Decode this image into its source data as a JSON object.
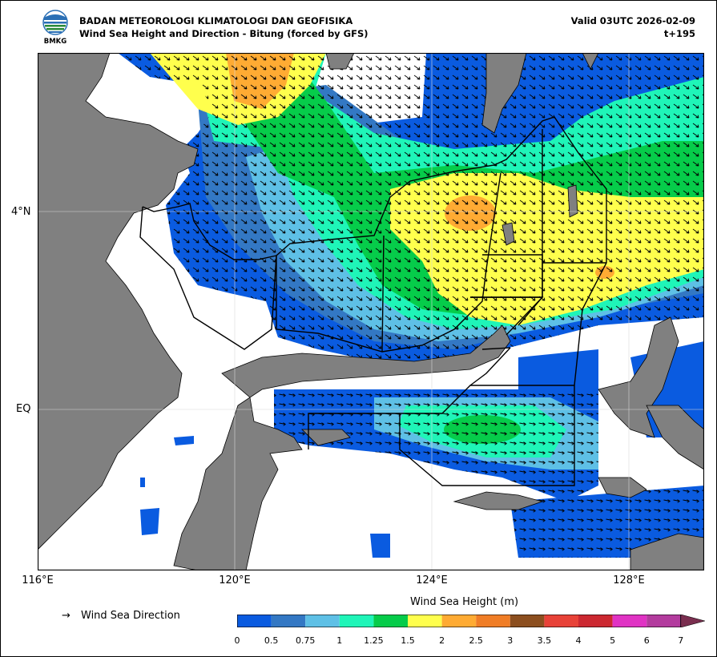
{
  "header": {
    "agency": "BADAN METEOROLOGI KLIMATOLOGI DAN GEOFISIKA",
    "product": "Wind Sea Height and Direction - Bitung (forced by GFS)",
    "valid": "Valid 03UTC 2026-02-09",
    "step": "t+195",
    "logo_text": "BMKG"
  },
  "axes": {
    "lat_labels": [
      "4°N",
      "EQ"
    ],
    "lon_labels": [
      "116°E",
      "120°E",
      "124°E",
      "128°E"
    ]
  },
  "legend": {
    "arrow_glyph": "→",
    "direction_label": "Wind Sea Direction",
    "colorbar_title": "Wind Sea Height (m)",
    "ticks": [
      "0",
      "0.5",
      "0.75",
      "1",
      "1.25",
      "1.5",
      "2",
      "2.5",
      "3",
      "3.5",
      "4",
      "5",
      "6",
      "7"
    ],
    "colors": [
      "#0a5be0",
      "#3378c4",
      "#5ec0e6",
      "#1ff5b8",
      "#06cc4a",
      "#ffff4d",
      "#ffab33",
      "#f07d26",
      "#8c4f1f",
      "#e84238",
      "#cc2831",
      "#e033c4",
      "#b33b9e"
    ],
    "extend_color": "#7a2e4f"
  },
  "colors": {
    "land": "#808080",
    "sea": "#ffffff",
    "boundary": "#000000"
  }
}
